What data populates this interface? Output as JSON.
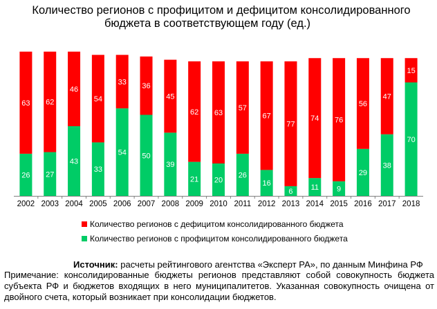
{
  "chart_data": {
    "type": "bar",
    "stacked": true,
    "title_line1": "Количество регионов с профицитом и дефицитом консолидированного",
    "title_line2": "бюджета в соответствующем году (ед.)",
    "categories": [
      "2002",
      "2003",
      "2004",
      "2005",
      "2006",
      "2007",
      "2008",
      "2009",
      "2010",
      "2011",
      "2012",
      "2013",
      "2014",
      "2015",
      "2016",
      "2017",
      "2018"
    ],
    "series": [
      {
        "name": "Количество регионов с профицитом консолидированного бюджета",
        "color": "#00cc66",
        "values": [
          26,
          27,
          43,
          33,
          54,
          50,
          39,
          21,
          20,
          26,
          16,
          6,
          11,
          9,
          29,
          38,
          70
        ]
      },
      {
        "name": "Количество регионов с дефицитом консолидированного бюджета",
        "color": "#ff0000",
        "values": [
          63,
          62,
          46,
          54,
          33,
          36,
          45,
          62,
          63,
          57,
          67,
          77,
          74,
          76,
          56,
          47,
          15
        ]
      }
    ],
    "legend_order": [
      1,
      0
    ],
    "ylim": [
      0,
      90
    ],
    "grid": false,
    "legend_position": "bottom"
  },
  "source": {
    "label": "Источник:",
    "text": " расчеты рейтингового агентства «Эксперт РА», по данным Минфина РФ"
  },
  "note": "Примечание: консолидированные бюджеты регионов представляют собой совокупность бюджета субъекта РФ и бюджетов входящих в него муниципалитетов. Указанная совокупность очищена от двойного счета, который возникает при консолидации бюджетов."
}
